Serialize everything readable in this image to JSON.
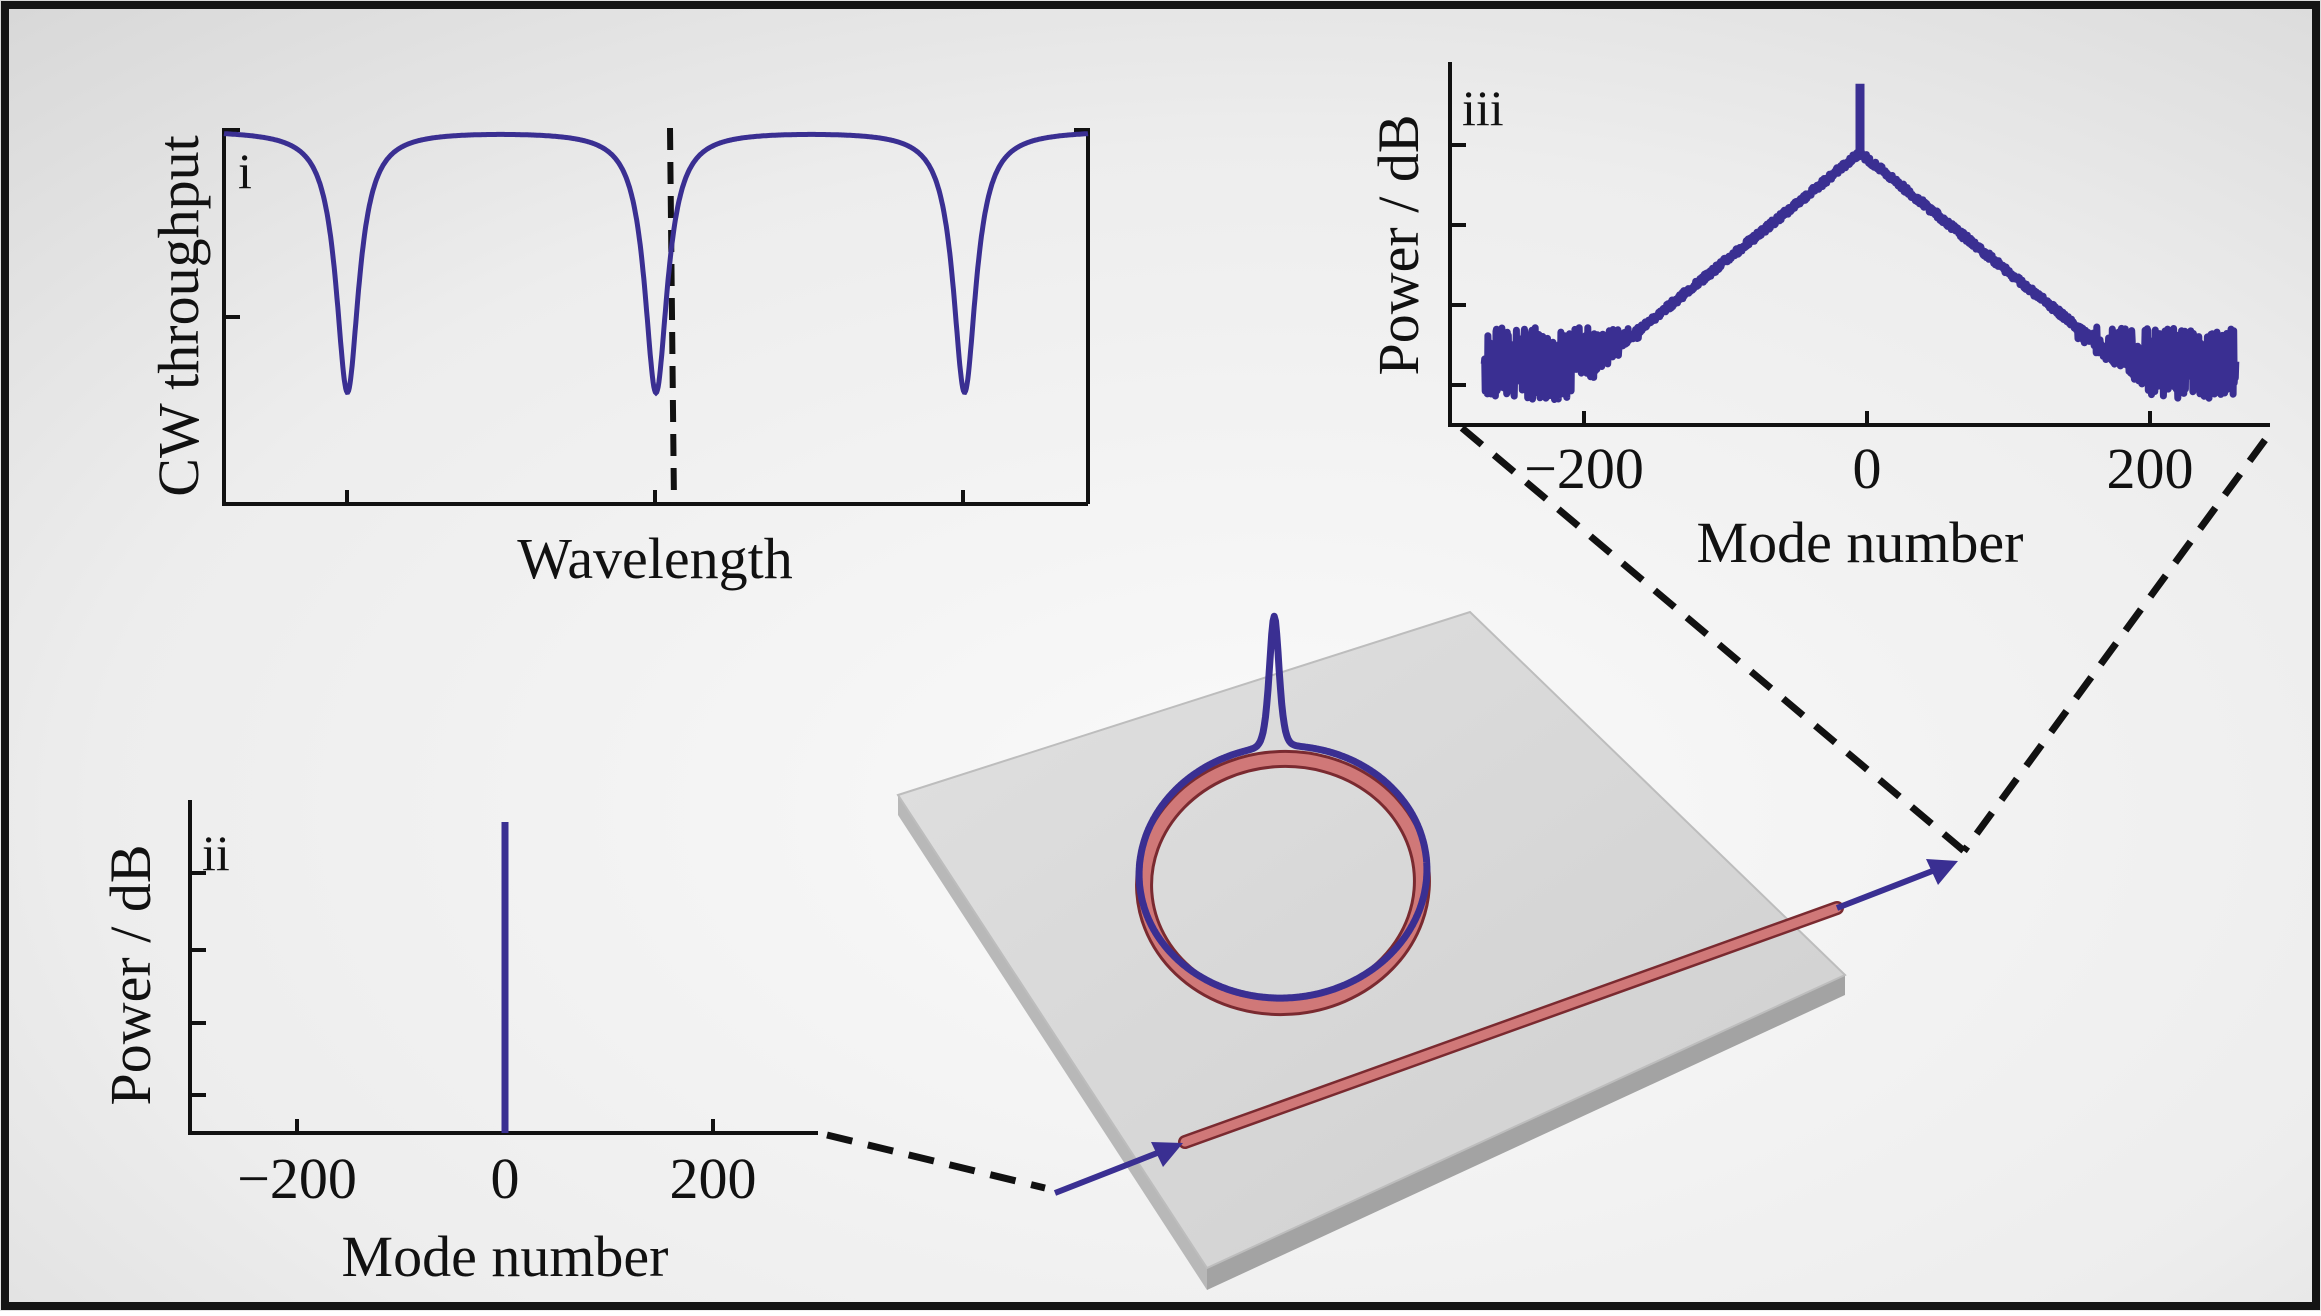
{
  "colors": {
    "trace": "#3a2f92",
    "waveguide": "#d07878",
    "waveguide_edge": "#7a2a30",
    "frame": "#141414",
    "chip_top": "#d9d9d9",
    "chip_side": "#a3a3a3",
    "background": "#ececec"
  },
  "panels": {
    "i": {
      "label": "i",
      "ylabel": "CW throughput",
      "xlabel": "Wavelength"
    },
    "ii": {
      "label": "ii",
      "ylabel": "Power / dB",
      "xlabel": "Mode number",
      "xticks": [
        "−200",
        "0",
        "200"
      ]
    },
    "iii": {
      "label": "iii",
      "ylabel": "Power / dB",
      "xlabel": "Mode number",
      "xticks": [
        "−200",
        "0",
        "200"
      ]
    }
  },
  "chart_data": [
    {
      "panel": "i",
      "type": "line",
      "xlabel": "Wavelength",
      "ylabel": "CW throughput",
      "description_of_curve": "periodic Lorentzian resonance dips",
      "resonance_dips": [
        {
          "x": -1,
          "y_min": 0.3
        },
        {
          "x": 0,
          "y_min": 0.3
        },
        {
          "x": 1,
          "y_min": 0.3
        }
      ],
      "baseline": 1.0,
      "xlim": [
        -1.4,
        1.4
      ],
      "ylim": [
        0,
        1.0
      ],
      "marker_line_x": 0.05
    },
    {
      "panel": "ii",
      "type": "line",
      "xlabel": "Mode number",
      "ylabel": "Power / dB",
      "xlim": [
        -300,
        300
      ],
      "xticks": [
        -200,
        0,
        200
      ],
      "peaks": [
        {
          "x": 0,
          "y": 1.0
        }
      ]
    },
    {
      "panel": "iii",
      "type": "line",
      "xlabel": "Mode number",
      "ylabel": "Power / dB",
      "xlim": [
        -300,
        300
      ],
      "xticks": [
        -200,
        0,
        200
      ],
      "peak_x": 0,
      "pump_line_height": 1.0,
      "comb_peak_level": 0.75,
      "noise_floor_level": 0.1
    }
  ]
}
